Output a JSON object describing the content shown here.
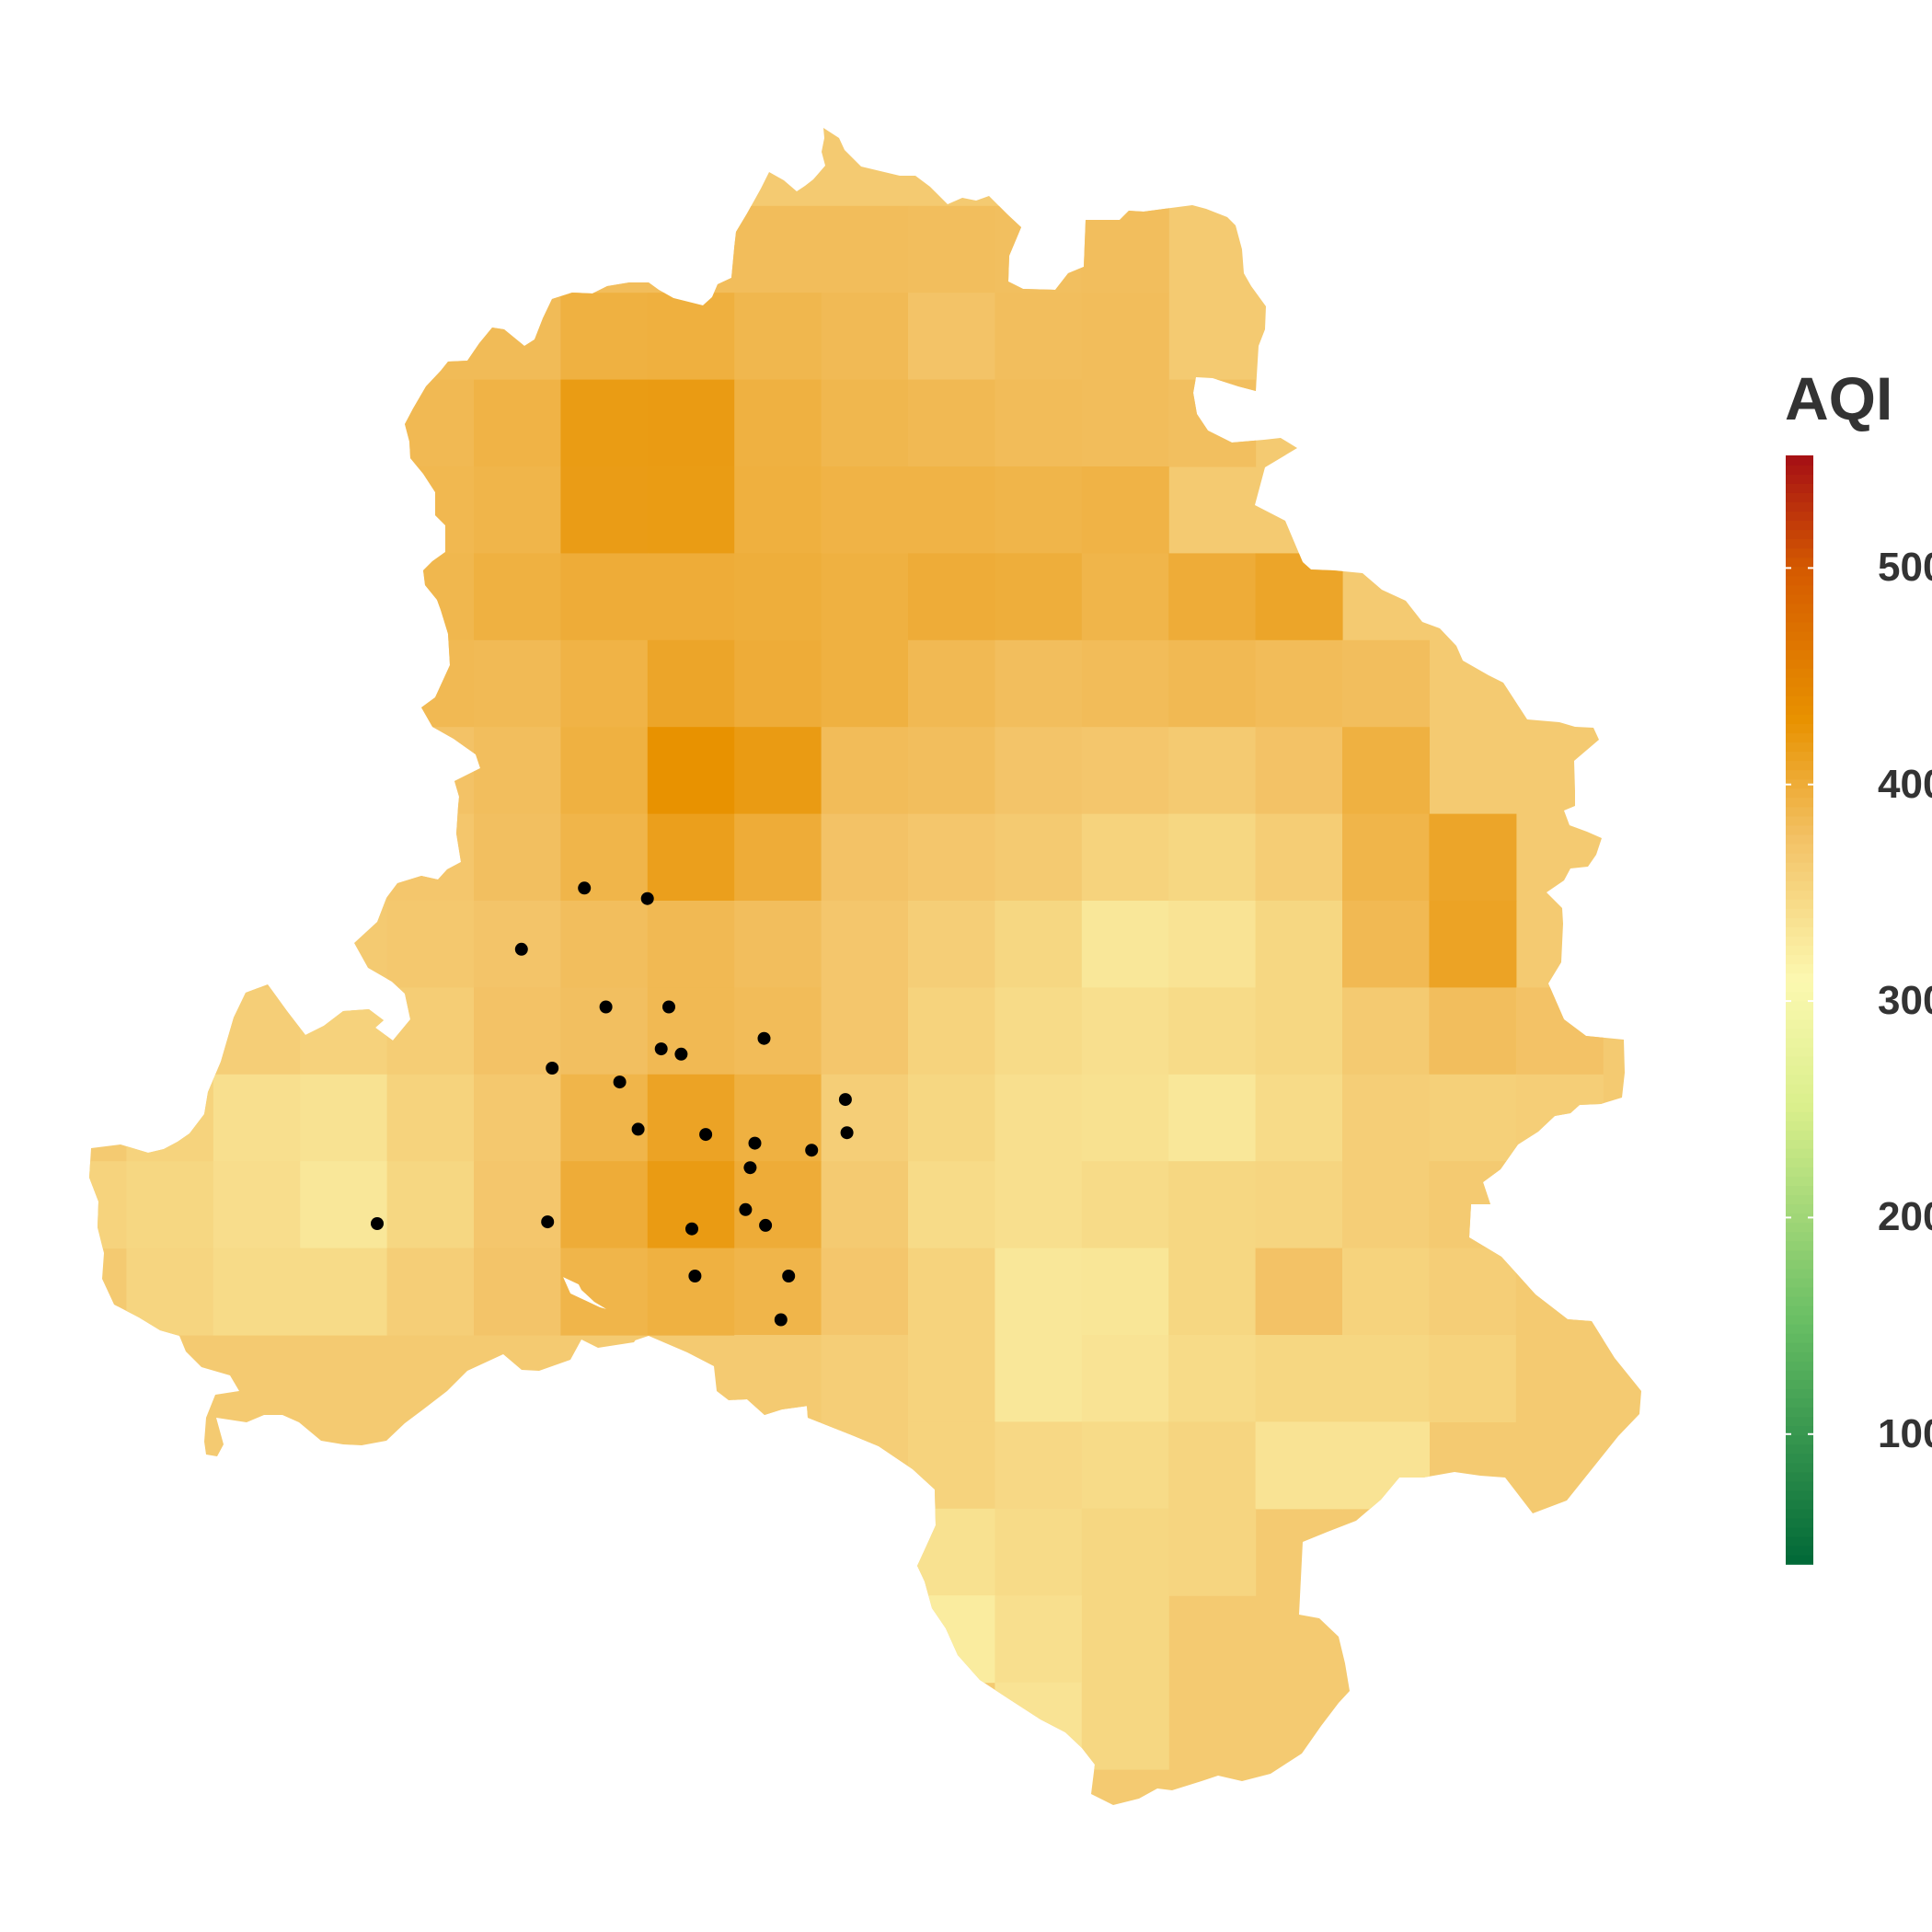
{
  "legend": {
    "title": "AQI",
    "ticks": [
      {
        "value": 500,
        "label": "500"
      },
      {
        "value": 400,
        "label": "400"
      },
      {
        "value": 300,
        "label": "300"
      },
      {
        "value": 200,
        "label": "200"
      },
      {
        "value": 100,
        "label": "100"
      }
    ],
    "range": [
      40,
      552
    ],
    "colorscale": [
      {
        "value": 40,
        "color": "#006837"
      },
      {
        "value": 150,
        "color": "#66bd63"
      },
      {
        "value": 250,
        "color": "#d9ef8b"
      },
      {
        "value": 310,
        "color": "#fcf8b0"
      },
      {
        "value": 375,
        "color": "#f3c266"
      },
      {
        "value": 430,
        "color": "#e89200"
      },
      {
        "value": 500,
        "color": "#d55a00"
      },
      {
        "value": 552,
        "color": "#a50f15"
      }
    ]
  },
  "chart_data": {
    "type": "heatmap",
    "title": "",
    "legend_title": "AQI",
    "legend_placement": "right",
    "grid": false,
    "aqi_grid": [
      [
        null,
        null,
        null,
        null,
        null,
        null,
        null,
        null,
        null,
        null,
        null,
        null,
        null,
        null,
        null,
        null,
        null,
        null
      ],
      [
        null,
        null,
        null,
        null,
        null,
        null,
        null,
        null,
        null,
        null,
        null,
        null,
        null,
        null,
        null,
        null,
        null,
        null
      ],
      [
        null,
        null,
        null,
        null,
        null,
        null,
        381,
        381,
        381,
        381,
        380,
        379,
        380,
        null,
        null,
        null,
        null,
        null
      ],
      [
        null,
        null,
        null,
        null,
        383,
        383,
        395,
        396,
        388,
        384,
        374,
        380,
        381,
        null,
        null,
        null,
        null,
        null
      ],
      [
        null,
        null,
        null,
        null,
        385,
        392,
        419,
        420,
        395,
        388,
        385,
        382,
        381,
        379,
        null,
        null,
        null,
        null
      ],
      [
        null,
        null,
        null,
        null,
        387,
        390,
        418,
        419,
        396,
        392,
        392,
        390,
        392,
        null,
        null,
        null,
        null,
        null
      ],
      [
        null,
        null,
        null,
        null,
        388,
        395,
        400,
        400,
        398,
        395,
        400,
        398,
        390,
        400,
        408,
        null,
        null,
        null
      ],
      [
        null,
        null,
        null,
        null,
        385,
        384,
        392,
        408,
        400,
        395,
        385,
        380,
        382,
        385,
        382,
        380,
        null,
        null
      ],
      [
        null,
        null,
        null,
        null,
        375,
        380,
        395,
        430,
        420,
        382,
        380,
        372,
        370,
        365,
        375,
        395,
        null,
        null
      ],
      [
        null,
        null,
        null,
        null,
        370,
        378,
        390,
        415,
        400,
        375,
        370,
        365,
        355,
        350,
        362,
        390,
        408,
        null
      ],
      [
        null,
        null,
        null,
        null,
        368,
        372,
        380,
        385,
        380,
        370,
        360,
        350,
        330,
        335,
        350,
        385,
        410,
        null
      ],
      [
        null,
        null,
        360,
        356,
        362,
        375,
        378,
        385,
        382,
        370,
        355,
        345,
        340,
        345,
        350,
        365,
        380,
        375
      ],
      [
        null,
        355,
        340,
        336,
        355,
        368,
        390,
        410,
        395,
        360,
        350,
        340,
        338,
        330,
        345,
        360,
        358,
        360
      ],
      [
        355,
        350,
        342,
        330,
        350,
        370,
        400,
        420,
        400,
        365,
        345,
        340,
        345,
        350,
        352,
        360,
        365,
        null
      ],
      [
        null,
        352,
        345,
        345,
        360,
        372,
        390,
        395,
        390,
        370,
        355,
        330,
        332,
        350,
        375,
        355,
        360,
        365
      ],
      [
        null,
        null,
        null,
        null,
        null,
        null,
        null,
        null,
        365,
        360,
        355,
        330,
        335,
        345,
        350,
        350,
        355,
        365
      ],
      [
        null,
        null,
        null,
        null,
        null,
        null,
        null,
        null,
        null,
        360,
        355,
        348,
        345,
        352,
        335,
        335,
        null,
        null
      ],
      [
        null,
        null,
        null,
        null,
        null,
        null,
        null,
        null,
        null,
        340,
        338,
        345,
        350,
        352,
        null,
        null,
        null,
        null
      ],
      [
        null,
        null,
        null,
        null,
        null,
        null,
        null,
        null,
        null,
        null,
        325,
        340,
        350,
        null,
        null,
        null,
        null,
        null
      ],
      [
        null,
        null,
        null,
        null,
        null,
        null,
        null,
        null,
        null,
        null,
        null,
        335,
        350,
        null,
        null,
        null,
        null,
        null
      ]
    ],
    "monitoring_stations": [
      {
        "lon": 77.139,
        "lat": 28.82
      },
      {
        "lon": 77.18,
        "lat": 28.814
      },
      {
        "lon": 77.098,
        "lat": 28.785
      },
      {
        "lon": 77.153,
        "lat": 28.752
      },
      {
        "lon": 77.194,
        "lat": 28.752
      },
      {
        "lon": 77.256,
        "lat": 28.734
      },
      {
        "lon": 77.189,
        "lat": 28.728
      },
      {
        "lon": 77.202,
        "lat": 28.725
      },
      {
        "lon": 77.118,
        "lat": 28.717
      },
      {
        "lon": 77.162,
        "lat": 28.709
      },
      {
        "lon": 77.309,
        "lat": 28.699
      },
      {
        "lon": 77.31,
        "lat": 28.68
      },
      {
        "lon": 77.174,
        "lat": 28.682
      },
      {
        "lon": 77.218,
        "lat": 28.679
      },
      {
        "lon": 77.25,
        "lat": 28.674
      },
      {
        "lon": 77.287,
        "lat": 28.67
      },
      {
        "lon": 77.247,
        "lat": 28.66
      },
      {
        "lon": 77.244,
        "lat": 28.636
      },
      {
        "lon": 77.257,
        "lat": 28.627
      },
      {
        "lon": 77.209,
        "lat": 28.625
      },
      {
        "lon": 77.004,
        "lat": 28.628
      },
      {
        "lon": 77.115,
        "lat": 28.629
      },
      {
        "lon": 77.211,
        "lat": 28.598
      },
      {
        "lon": 77.272,
        "lat": 28.598
      },
      {
        "lon": 77.267,
        "lat": 28.573
      }
    ]
  }
}
